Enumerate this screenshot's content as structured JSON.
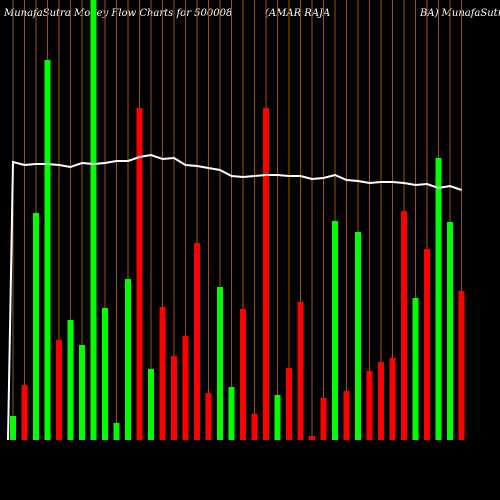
{
  "chart_data": {
    "type": "bar",
    "title": "MunafaSutra  Money Flow  Charts for 500008",
    "title_mid": "(AMAR RAJA",
    "title_right": "BA) MunafaSutra.com",
    "values": [
      24,
      55,
      227,
      380,
      100,
      120,
      95,
      460,
      132,
      17,
      161,
      332,
      71,
      133,
      84,
      104,
      197,
      47,
      153,
      53,
      131,
      26,
      332,
      45,
      72,
      138,
      4,
      42,
      219,
      49,
      208,
      69,
      78,
      82,
      229,
      142,
      191,
      282,
      218,
      149
    ],
    "colors": [
      "#00ff00",
      "#ff0000",
      "#00ff00",
      "#00ff00",
      "#ff0000",
      "#00ff00",
      "#00ff00",
      "#00ff00",
      "#00ff00",
      "#00ff00",
      "#00ff00",
      "#ff0000",
      "#00ff00",
      "#ff0000",
      "#ff0000",
      "#ff0000",
      "#ff0000",
      "#ff0000",
      "#00ff00",
      "#00ff00",
      "#ff0000",
      "#ff0000",
      "#ff0000",
      "#00ff00",
      "#ff0000",
      "#ff0000",
      "#ff0000",
      "#ff0000",
      "#00ff00",
      "#ff0000",
      "#00ff00",
      "#ff0000",
      "#ff0000",
      "#ff0000",
      "#ff0000",
      "#00ff00",
      "#ff0000",
      "#00ff00",
      "#00ff00",
      "#ff0000"
    ],
    "line": {
      "color": "#ffffff",
      "values": [
        278,
        275,
        276,
        276,
        275,
        273,
        277,
        276,
        277,
        279,
        279,
        283,
        285,
        281,
        282,
        275,
        274,
        272,
        270,
        264,
        263,
        264,
        265,
        265,
        264,
        264,
        261,
        262,
        265,
        260,
        259,
        257,
        258,
        258,
        257,
        255,
        256,
        252,
        254,
        250
      ]
    }
  }
}
